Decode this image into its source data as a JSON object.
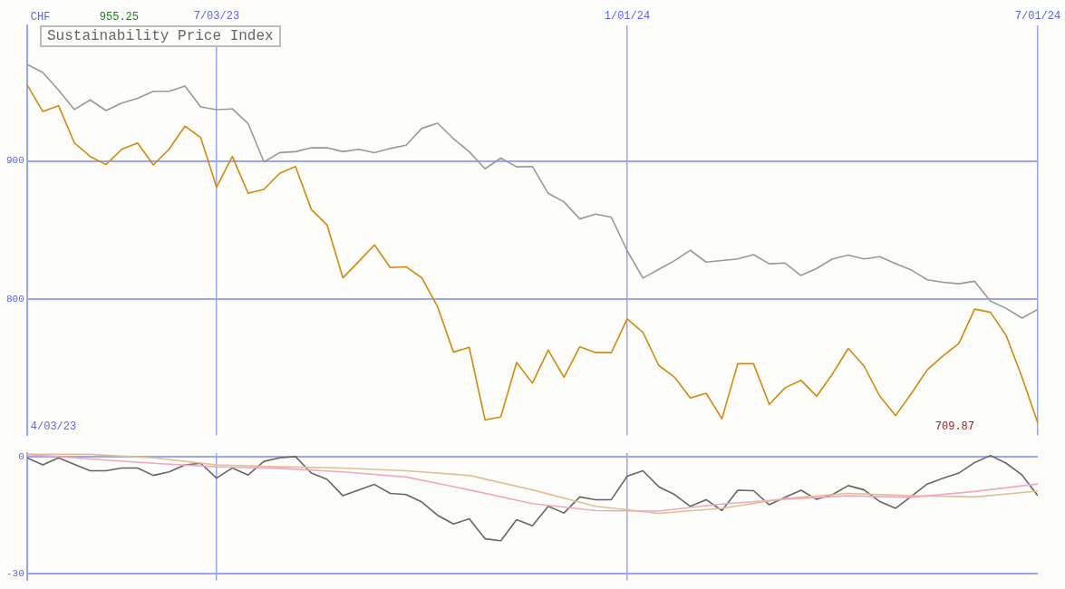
{
  "chart_data": [
    {
      "type": "line",
      "title": "Sustainability Price Index",
      "ylabel": "CHF",
      "marker": "none",
      "line_style": "solid",
      "grid": true,
      "legend": false,
      "annotations": [
        "955.25",
        "709.87",
        "4/03/23"
      ],
      "x": [
        "2023-04-10",
        "2023-04-17",
        "2023-04-24",
        "2023-05-01",
        "2023-05-08",
        "2023-05-15",
        "2023-05-22",
        "2023-05-29",
        "2023-06-05",
        "2023-06-12",
        "2023-06-19",
        "2023-06-26",
        "2023-07-03",
        "2023-07-10",
        "2023-07-17",
        "2023-07-24",
        "2023-07-31",
        "2023-08-07",
        "2023-08-14",
        "2023-08-21",
        "2023-08-28",
        "2023-09-04",
        "2023-09-11",
        "2023-09-18",
        "2023-09-25",
        "2023-10-02",
        "2023-10-09",
        "2023-10-16",
        "2023-10-23",
        "2023-10-30",
        "2023-11-06",
        "2023-11-13",
        "2023-11-20",
        "2023-11-27",
        "2023-12-04",
        "2023-12-11",
        "2023-12-18",
        "2023-12-25",
        "2024-01-01",
        "2024-01-08",
        "2024-01-15",
        "2024-01-22",
        "2024-01-29",
        "2024-02-05",
        "2024-02-12",
        "2024-02-19",
        "2024-02-26",
        "2024-03-04",
        "2024-03-11",
        "2024-03-18",
        "2024-03-25",
        "2024-04-01",
        "2024-04-08",
        "2024-04-15",
        "2024-04-22",
        "2024-04-29",
        "2024-05-06",
        "2024-05-13",
        "2024-05-20",
        "2024-05-27",
        "2024-06-03",
        "2024-06-10",
        "2024-06-17",
        "2024-06-24",
        "2024-07-01"
      ],
      "xlim": [
        "2023-04-10",
        "2024-07-01"
      ],
      "xticks": [
        {
          "value": "2023-07-03",
          "label": "7/03/23"
        },
        {
          "value": "2024-01-01",
          "label": "1/01/24"
        },
        {
          "value": "2024-07-01",
          "label": "7/01/24"
        }
      ],
      "ylim": [
        701,
        998
      ],
      "yticks": [
        800,
        900
      ],
      "series": [
        {
          "color": "#999999",
          "values": [
            970,
            964.1,
            951.3,
            937.2,
            944.2,
            936.5,
            941.9,
            945.4,
            950.5,
            950.5,
            954.3,
            939.1,
            937.2,
            937.7,
            927.1,
            899.2,
            906,
            906.7,
            909.5,
            909.5,
            906.7,
            908.4,
            906,
            909,
            911.4,
            923.6,
            927.3,
            916.1,
            906.7,
            894.3,
            902,
            895.7,
            895.9,
            876.5,
            870.2,
            857.9,
            861.4,
            859.1,
            834.8,
            815,
            821.3,
            827.7,
            835.2,
            826.6,
            827.7,
            828.9,
            832,
            825.4,
            825.9,
            816.9,
            822,
            828.9,
            831.7,
            828.9,
            830.5,
            825.4,
            820.8,
            813.8,
            812,
            810.9,
            812.7,
            798.3,
            793,
            786,
            792.3
          ]
        },
        {
          "color": "#d4890a",
          "values": [
            955.25,
            935.8,
            940,
            913,
            903.2,
            897.3,
            908.4,
            913,
            897.1,
            908.6,
            925.2,
            916.8,
            880.9,
            903.2,
            876.5,
            879.3,
            891,
            895.9,
            864.8,
            853.5,
            815.2,
            827,
            839.1,
            822.7,
            823.2,
            815.2,
            794.1,
            761.3,
            764.8,
            712.1,
            714.4,
            753.8,
            738.8,
            762.8,
            743.1,
            765.2,
            761,
            761,
            785.4,
            775.6,
            751.7,
            743.1,
            728,
            731.5,
            713,
            752.9,
            752.9,
            723.4,
            735.5,
            740.9,
            729.3,
            745.5,
            764,
            751.2,
            729.3,
            715.3,
            731.5,
            748.5,
            758.7,
            767.5,
            792.5,
            790.2,
            773.3,
            743.1,
            709.87
          ]
        }
      ]
    },
    {
      "type": "line",
      "marker": "none",
      "line_style": "solid",
      "grid": true,
      "legend": false,
      "tick_labels": "y",
      "x": [
        "2023-04-10",
        "2023-04-17",
        "2023-04-24",
        "2023-05-01",
        "2023-05-08",
        "2023-05-15",
        "2023-05-22",
        "2023-05-29",
        "2023-06-05",
        "2023-06-12",
        "2023-06-19",
        "2023-06-26",
        "2023-07-03",
        "2023-07-10",
        "2023-07-17",
        "2023-07-24",
        "2023-07-31",
        "2023-08-07",
        "2023-08-14",
        "2023-08-21",
        "2023-08-28",
        "2023-09-04",
        "2023-09-11",
        "2023-09-18",
        "2023-09-25",
        "2023-10-02",
        "2023-10-09",
        "2023-10-16",
        "2023-10-23",
        "2023-10-30",
        "2023-11-06",
        "2023-11-13",
        "2023-11-20",
        "2023-11-27",
        "2023-12-04",
        "2023-12-11",
        "2023-12-18",
        "2023-12-25",
        "2024-01-01",
        "2024-01-08",
        "2024-01-15",
        "2024-01-22",
        "2024-01-29",
        "2024-02-05",
        "2024-02-12",
        "2024-02-19",
        "2024-02-26",
        "2024-03-04",
        "2024-03-11",
        "2024-03-18",
        "2024-03-25",
        "2024-04-01",
        "2024-04-08",
        "2024-04-15",
        "2024-04-22",
        "2024-04-29",
        "2024-05-06",
        "2024-05-13",
        "2024-05-20",
        "2024-05-27",
        "2024-06-03",
        "2024-06-10",
        "2024-06-17",
        "2024-06-24",
        "2024-07-01"
      ],
      "xlim": [
        "2023-04-10",
        "2024-07-01"
      ],
      "xticks": [
        {
          "value": "2023-07-03",
          "label": null
        },
        {
          "value": "2024-01-01",
          "label": null
        }
      ],
      "ylim": [
        -31.6,
        1
      ],
      "yticks": [
        0,
        -30
      ],
      "series": [
        {
          "color": "#f4a6c0",
          "x": [
            "2023-04-10",
            "2023-05-08",
            "2023-06-05",
            "2023-07-03",
            "2023-07-31",
            "2023-08-28",
            "2023-09-25",
            "2023-10-23",
            "2023-11-20",
            "2023-12-18",
            "2024-01-15",
            "2024-02-12",
            "2024-03-11",
            "2024-04-08",
            "2024-05-06",
            "2024-06-03",
            "2024-07-01"
          ],
          "values": [
            0.6,
            -0.6,
            -1.7,
            -2.6,
            -3,
            -3.9,
            -5.2,
            -8.5,
            -12,
            -13.8,
            -13.9,
            -12.1,
            -10.9,
            -10,
            -10.4,
            -8.9,
            -7
          ]
        },
        {
          "color": "#e0c090",
          "x": [
            "2023-04-10",
            "2023-05-08",
            "2023-06-05",
            "2023-07-03",
            "2023-07-31",
            "2023-08-28",
            "2023-09-25",
            "2023-10-23",
            "2023-11-20",
            "2023-12-18",
            "2024-01-15",
            "2024-02-12",
            "2024-03-11",
            "2024-04-08",
            "2024-05-06",
            "2024-06-03",
            "2024-07-01"
          ],
          "values": [
            0.6,
            0.6,
            -0.3,
            -2.1,
            -2.6,
            -2.9,
            -3.6,
            -4.8,
            -8.5,
            -12.7,
            -14.5,
            -13.2,
            -10.7,
            -9.4,
            -10,
            -10.3,
            -8.8
          ]
        },
        {
          "color": "#666666",
          "values": [
            -0.3,
            -2.1,
            -0.3,
            -2,
            -3.6,
            -3.6,
            -2.9,
            -2.9,
            -4.8,
            -3.9,
            -2.1,
            -1.7,
            -5.5,
            -2.9,
            -4.7,
            -1.2,
            -0.3,
            0,
            -4.2,
            -5.8,
            -10,
            -8.5,
            -7.1,
            -9.4,
            -9.7,
            -11.6,
            -15,
            -17.2,
            -15.9,
            -21,
            -21.5,
            -16.1,
            -17.7,
            -12.7,
            -14.4,
            -10.3,
            -11,
            -11,
            -5,
            -3.6,
            -7.7,
            -9.7,
            -12.7,
            -11,
            -13.8,
            -8.6,
            -8.7,
            -12.3,
            -10.4,
            -8.6,
            -10.9,
            -9.7,
            -7.4,
            -8.5,
            -11.5,
            -13.2,
            -10.1,
            -7,
            -5.5,
            -4.2,
            -1.5,
            0.3,
            -1.7,
            -4.7,
            -10
          ]
        }
      ]
    }
  ]
}
